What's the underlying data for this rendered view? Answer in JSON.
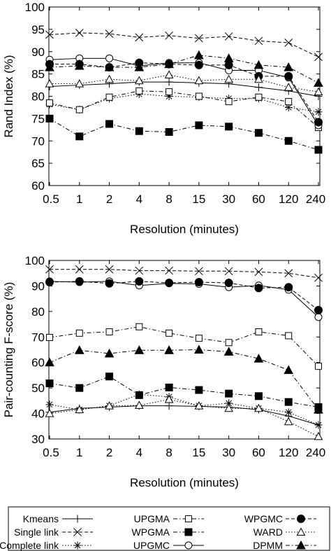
{
  "chart_data": [
    {
      "type": "line",
      "xlabel": "Resolution (minutes)",
      "ylabel": "Rand Index (%)",
      "ylim": [
        60,
        100
      ],
      "yticks": [
        60,
        65,
        70,
        75,
        80,
        85,
        90,
        95,
        100
      ],
      "categories": [
        "0.5",
        "1",
        "2",
        "4",
        "8",
        "15",
        "30",
        "60",
        "120",
        "240"
      ],
      "grid": false,
      "series": [
        {
          "name": "Kmeans",
          "values": [
            82.2,
            82.5,
            82.8,
            83.2,
            83.2,
            83.0,
            82.8,
            82.0,
            81.2,
            80.0
          ]
        },
        {
          "name": "Single link",
          "values": [
            93.8,
            94.2,
            94.0,
            93.2,
            93.6,
            93.0,
            93.4,
            92.4,
            92.0,
            88.8
          ]
        },
        {
          "name": "Complete link",
          "values": [
            78.2,
            77.0,
            79.5,
            80.5,
            80.0,
            79.8,
            79.5,
            79.5,
            77.5,
            76.5
          ]
        },
        {
          "name": "UPGMA",
          "values": [
            78.5,
            77.0,
            79.8,
            81.2,
            81.0,
            80.0,
            78.8,
            79.8,
            78.8,
            73.0
          ]
        },
        {
          "name": "WPGMA",
          "values": [
            75.0,
            71.0,
            73.8,
            72.2,
            72.0,
            73.5,
            73.2,
            71.8,
            70.0,
            68.0
          ]
        },
        {
          "name": "UPGMC",
          "values": [
            88.2,
            88.5,
            88.5,
            86.8,
            87.5,
            87.5,
            85.8,
            85.8,
            84.2,
            73.5
          ]
        },
        {
          "name": "WPGMC",
          "values": [
            87.2,
            87.2,
            86.5,
            87.5,
            87.2,
            87.0,
            87.0,
            84.5,
            84.5,
            74.2
          ]
        },
        {
          "name": "WARD",
          "values": [
            82.8,
            82.8,
            83.8,
            83.5,
            84.8,
            83.5,
            83.8,
            83.8,
            82.0,
            81.0
          ]
        },
        {
          "name": "DPMM",
          "values": [
            86.5,
            86.8,
            86.5,
            86.5,
            87.2,
            89.2,
            88.5,
            87.0,
            86.5,
            83.0
          ]
        }
      ]
    },
    {
      "type": "line",
      "xlabel": "Resolution (minutes)",
      "ylabel": "Pair-counting F-score (%)",
      "ylim": [
        30,
        100
      ],
      "yticks": [
        30,
        40,
        50,
        60,
        70,
        80,
        90,
        100
      ],
      "categories": [
        "0.5",
        "1",
        "2",
        "4",
        "8",
        "15",
        "30",
        "60",
        "120",
        "240"
      ],
      "grid": false,
      "series": [
        {
          "name": "Kmeans",
          "values": [
            40.5,
            42.0,
            42.5,
            43.0,
            43.0,
            42.8,
            42.5,
            41.5,
            39.0,
            35.5
          ]
        },
        {
          "name": "Single link",
          "values": [
            96.5,
            96.5,
            96.5,
            96.0,
            96.0,
            95.8,
            95.8,
            95.5,
            95.0,
            93.2
          ]
        },
        {
          "name": "Complete link",
          "values": [
            43.5,
            41.5,
            43.0,
            47.5,
            46.5,
            43.0,
            44.0,
            42.0,
            40.5,
            35.5
          ]
        },
        {
          "name": "UPGMA",
          "values": [
            69.8,
            71.5,
            72.0,
            74.0,
            71.5,
            69.5,
            67.8,
            72.0,
            70.5,
            58.5
          ]
        },
        {
          "name": "WPGMA",
          "values": [
            51.8,
            50.0,
            54.5,
            47.2,
            50.2,
            49.2,
            47.8,
            46.8,
            44.5,
            42.5
          ]
        },
        {
          "name": "UPGMC",
          "values": [
            91.8,
            91.5,
            91.8,
            90.2,
            91.0,
            90.8,
            89.5,
            90.2,
            88.5,
            77.8
          ]
        },
        {
          "name": "WPGMC",
          "values": [
            91.5,
            91.8,
            91.0,
            91.8,
            91.2,
            91.5,
            91.2,
            89.2,
            89.5,
            80.5
          ]
        },
        {
          "name": "WARD",
          "values": [
            40.0,
            41.5,
            43.0,
            43.2,
            45.5,
            43.0,
            42.0,
            42.0,
            36.8,
            31.0
          ]
        },
        {
          "name": "DPMM",
          "values": [
            60.0,
            64.8,
            63.5,
            64.8,
            64.8,
            65.0,
            64.2,
            61.5,
            57.0,
            41.5
          ]
        }
      ]
    }
  ],
  "legend": {
    "placement": "bottom",
    "entries": [
      {
        "name": "Kmeans",
        "line": "solid",
        "marker": "plus"
      },
      {
        "name": "Single link",
        "line": "dashed",
        "marker": "x"
      },
      {
        "name": "Complete link",
        "line": "dotted",
        "marker": "star"
      },
      {
        "name": "UPGMA",
        "line": "dashdot",
        "marker": "square-open"
      },
      {
        "name": "WPGMA",
        "line": "dashdot",
        "marker": "square-filled"
      },
      {
        "name": "UPGMC",
        "line": "solid",
        "marker": "circle-open"
      },
      {
        "name": "WPGMC",
        "line": "dashed",
        "marker": "circle-filled"
      },
      {
        "name": "WARD",
        "line": "dotted",
        "marker": "triangle-open"
      },
      {
        "name": "DPMM",
        "line": "dashdot",
        "marker": "triangle-filled"
      }
    ]
  }
}
